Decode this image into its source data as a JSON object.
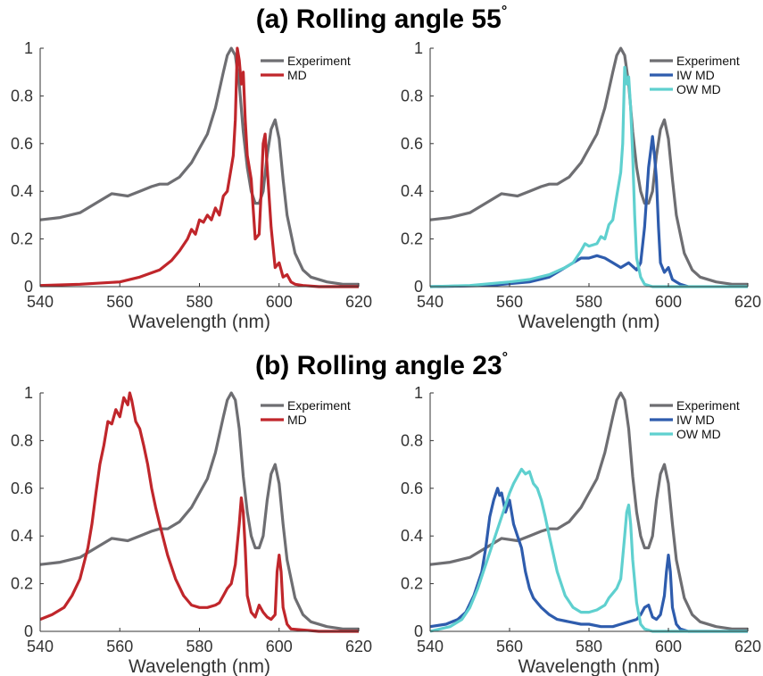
{
  "titles": {
    "a_text": "(a) Rolling angle 55",
    "b_text": "(b) Rolling angle 23",
    "deg": "°"
  },
  "colors": {
    "experiment": "#6e6e72",
    "md": "#c0262b",
    "iw_md": "#2e5cad",
    "ow_md": "#5fd0cf"
  },
  "chart_data": [
    {
      "type": "line",
      "panel": "a-left",
      "xlabel": "Wavelength (nm)",
      "ylabel": "",
      "xlim": [
        540,
        620
      ],
      "ylim": [
        0,
        1
      ],
      "xticks": [
        540,
        560,
        580,
        600,
        620
      ],
      "yticks": [
        0,
        0.2,
        0.4,
        0.6,
        0.8,
        1
      ],
      "grid": false,
      "legend": "top-right",
      "series": [
        {
          "name": "Experiment",
          "color_key": "experiment",
          "x": [
            540,
            545,
            550,
            555,
            558,
            562,
            565,
            568,
            570,
            572,
            575,
            578,
            580,
            582,
            584,
            586,
            587,
            588,
            589,
            590,
            591,
            592,
            593,
            594,
            595,
            596,
            597,
            598,
            599,
            600,
            601,
            602,
            604,
            606,
            608,
            612,
            616,
            620
          ],
          "y": [
            0.28,
            0.29,
            0.31,
            0.36,
            0.39,
            0.38,
            0.4,
            0.42,
            0.43,
            0.43,
            0.46,
            0.52,
            0.58,
            0.64,
            0.75,
            0.9,
            0.97,
            1.0,
            0.97,
            0.85,
            0.65,
            0.5,
            0.4,
            0.35,
            0.35,
            0.4,
            0.55,
            0.66,
            0.7,
            0.62,
            0.45,
            0.3,
            0.14,
            0.07,
            0.04,
            0.02,
            0.01,
            0.01
          ]
        },
        {
          "name": "MD",
          "color_key": "md",
          "x": [
            540,
            550,
            560,
            565,
            570,
            573,
            575,
            577,
            578,
            579,
            580,
            581,
            582,
            583,
            584,
            585,
            586,
            587,
            588,
            588.5,
            589,
            589.5,
            590,
            590.5,
            591,
            591.5,
            592,
            593,
            594,
            595,
            595.5,
            596,
            596.5,
            597,
            598,
            599,
            600,
            601,
            602,
            603,
            604,
            606,
            610,
            620
          ],
          "y": [
            0.005,
            0.01,
            0.02,
            0.04,
            0.07,
            0.11,
            0.15,
            0.2,
            0.24,
            0.22,
            0.28,
            0.27,
            0.3,
            0.28,
            0.33,
            0.3,
            0.38,
            0.4,
            0.5,
            0.55,
            0.7,
            1.0,
            0.95,
            0.85,
            0.9,
            0.7,
            0.55,
            0.45,
            0.2,
            0.22,
            0.4,
            0.6,
            0.64,
            0.5,
            0.25,
            0.08,
            0.1,
            0.04,
            0.05,
            0.02,
            0.01,
            0.005,
            0.0,
            0.0
          ]
        }
      ]
    },
    {
      "type": "line",
      "panel": "a-right",
      "xlabel": "Wavelength (nm)",
      "ylabel": "",
      "xlim": [
        540,
        620
      ],
      "ylim": [
        0,
        1
      ],
      "xticks": [
        540,
        560,
        580,
        600,
        620
      ],
      "yticks": [
        0,
        0.2,
        0.4,
        0.6,
        0.8,
        1
      ],
      "grid": false,
      "legend": "top-right",
      "series": [
        {
          "name": "Experiment",
          "color_key": "experiment",
          "x": [
            540,
            545,
            550,
            555,
            558,
            562,
            565,
            568,
            570,
            572,
            575,
            578,
            580,
            582,
            584,
            586,
            587,
            588,
            589,
            590,
            591,
            592,
            593,
            594,
            595,
            596,
            597,
            598,
            599,
            600,
            601,
            602,
            604,
            606,
            608,
            612,
            616,
            620
          ],
          "y": [
            0.28,
            0.29,
            0.31,
            0.36,
            0.39,
            0.38,
            0.4,
            0.42,
            0.43,
            0.43,
            0.46,
            0.52,
            0.58,
            0.64,
            0.75,
            0.9,
            0.97,
            1.0,
            0.97,
            0.85,
            0.65,
            0.5,
            0.4,
            0.35,
            0.35,
            0.4,
            0.55,
            0.66,
            0.7,
            0.62,
            0.45,
            0.3,
            0.14,
            0.07,
            0.04,
            0.02,
            0.01,
            0.01
          ]
        },
        {
          "name": "IW MD",
          "color_key": "iw_md",
          "x": [
            540,
            555,
            565,
            570,
            573,
            576,
            578,
            580,
            582,
            584,
            586,
            588,
            590,
            592,
            593,
            594,
            595,
            596,
            596.5,
            597,
            597.5,
            598,
            599,
            600,
            601,
            602,
            603,
            604,
            605
          ],
          "y": [
            0.0,
            0.005,
            0.02,
            0.04,
            0.07,
            0.1,
            0.12,
            0.12,
            0.13,
            0.12,
            0.1,
            0.08,
            0.1,
            0.07,
            0.1,
            0.25,
            0.5,
            0.63,
            0.55,
            0.45,
            0.25,
            0.1,
            0.06,
            0.08,
            0.03,
            0.02,
            0.01,
            0.005,
            0.0
          ]
        },
        {
          "name": "OW MD",
          "color_key": "ow_md",
          "x": [
            540,
            550,
            560,
            565,
            570,
            574,
            576,
            578,
            579,
            580,
            582,
            583,
            584,
            585,
            586,
            587,
            588,
            588.5,
            589,
            589.5,
            590,
            590.5,
            591,
            591.5,
            592,
            593,
            594,
            596,
            600,
            620
          ],
          "y": [
            0.0,
            0.005,
            0.02,
            0.03,
            0.05,
            0.08,
            0.1,
            0.15,
            0.18,
            0.17,
            0.18,
            0.21,
            0.2,
            0.26,
            0.28,
            0.38,
            0.48,
            0.6,
            0.92,
            0.85,
            0.88,
            0.75,
            0.55,
            0.3,
            0.12,
            0.04,
            0.01,
            0.0,
            0.0,
            0.0
          ]
        }
      ]
    },
    {
      "type": "line",
      "panel": "b-left",
      "xlabel": "Wavelength (nm)",
      "ylabel": "",
      "xlim": [
        540,
        620
      ],
      "ylim": [
        0,
        1
      ],
      "xticks": [
        540,
        560,
        580,
        600,
        620
      ],
      "yticks": [
        0,
        0.2,
        0.4,
        0.6,
        0.8,
        1
      ],
      "grid": false,
      "legend": "top-right",
      "series": [
        {
          "name": "Experiment",
          "color_key": "experiment",
          "x": [
            540,
            545,
            550,
            555,
            558,
            562,
            565,
            568,
            570,
            572,
            575,
            578,
            580,
            582,
            584,
            586,
            587,
            588,
            589,
            590,
            591,
            592,
            593,
            594,
            595,
            596,
            597,
            598,
            599,
            600,
            601,
            602,
            604,
            606,
            608,
            612,
            616,
            620
          ],
          "y": [
            0.28,
            0.29,
            0.31,
            0.36,
            0.39,
            0.38,
            0.4,
            0.42,
            0.43,
            0.43,
            0.46,
            0.52,
            0.58,
            0.64,
            0.75,
            0.9,
            0.97,
            1.0,
            0.97,
            0.85,
            0.65,
            0.5,
            0.4,
            0.35,
            0.35,
            0.4,
            0.55,
            0.66,
            0.7,
            0.62,
            0.45,
            0.3,
            0.14,
            0.07,
            0.04,
            0.02,
            0.01,
            0.01
          ]
        },
        {
          "name": "MD",
          "color_key": "md",
          "x": [
            540,
            543,
            546,
            548,
            550,
            552,
            553,
            554,
            555,
            556,
            557,
            558,
            559,
            560,
            561,
            562,
            562.5,
            563,
            564,
            565,
            566,
            567,
            568,
            569,
            570,
            572,
            574,
            576,
            578,
            580,
            582,
            584,
            585,
            586,
            587,
            588,
            589,
            590,
            590.5,
            591,
            591.5,
            592,
            593,
            594,
            595,
            596,
            597,
            598,
            599,
            599.5,
            600,
            600.5,
            601,
            602,
            603,
            610,
            620
          ],
          "y": [
            0.05,
            0.07,
            0.1,
            0.15,
            0.22,
            0.35,
            0.45,
            0.58,
            0.7,
            0.78,
            0.88,
            0.87,
            0.93,
            0.9,
            0.98,
            0.95,
            1.0,
            0.97,
            0.88,
            0.85,
            0.78,
            0.7,
            0.6,
            0.52,
            0.45,
            0.32,
            0.22,
            0.15,
            0.11,
            0.1,
            0.1,
            0.11,
            0.12,
            0.15,
            0.18,
            0.2,
            0.28,
            0.45,
            0.56,
            0.5,
            0.35,
            0.15,
            0.08,
            0.06,
            0.11,
            0.08,
            0.06,
            0.05,
            0.07,
            0.25,
            0.32,
            0.25,
            0.1,
            0.03,
            0.01,
            0.0,
            0.0
          ]
        }
      ]
    },
    {
      "type": "line",
      "panel": "b-right",
      "xlabel": "Wavelength (nm)",
      "ylabel": "",
      "xlim": [
        540,
        620
      ],
      "ylim": [
        0,
        1
      ],
      "xticks": [
        540,
        560,
        580,
        600,
        620
      ],
      "yticks": [
        0,
        0.2,
        0.4,
        0.6,
        0.8,
        1
      ],
      "grid": false,
      "legend": "top-right",
      "series": [
        {
          "name": "Experiment",
          "color_key": "experiment",
          "x": [
            540,
            545,
            550,
            555,
            558,
            562,
            565,
            568,
            570,
            572,
            575,
            578,
            580,
            582,
            584,
            586,
            587,
            588,
            589,
            590,
            591,
            592,
            593,
            594,
            595,
            596,
            597,
            598,
            599,
            600,
            601,
            602,
            604,
            606,
            608,
            612,
            616,
            620
          ],
          "y": [
            0.28,
            0.29,
            0.31,
            0.36,
            0.39,
            0.38,
            0.4,
            0.42,
            0.43,
            0.43,
            0.46,
            0.52,
            0.58,
            0.64,
            0.75,
            0.9,
            0.97,
            1.0,
            0.97,
            0.85,
            0.65,
            0.5,
            0.4,
            0.35,
            0.35,
            0.4,
            0.55,
            0.66,
            0.7,
            0.62,
            0.45,
            0.3,
            0.14,
            0.07,
            0.04,
            0.02,
            0.01,
            0.01
          ]
        },
        {
          "name": "IW MD",
          "color_key": "iw_md",
          "x": [
            540,
            544,
            547,
            549,
            551,
            553,
            554,
            555,
            556,
            557,
            557.5,
            558,
            559,
            560,
            561,
            562,
            563,
            564,
            565,
            566,
            567,
            568,
            570,
            572,
            575,
            578,
            580,
            583,
            586,
            588,
            590,
            592,
            593,
            594,
            595,
            596,
            597,
            598,
            599,
            599.5,
            600,
            600.5,
            601,
            602,
            603,
            605,
            620
          ],
          "y": [
            0.02,
            0.03,
            0.05,
            0.08,
            0.15,
            0.25,
            0.35,
            0.48,
            0.55,
            0.6,
            0.57,
            0.58,
            0.5,
            0.55,
            0.45,
            0.4,
            0.35,
            0.25,
            0.18,
            0.14,
            0.12,
            0.1,
            0.07,
            0.05,
            0.04,
            0.03,
            0.03,
            0.02,
            0.02,
            0.03,
            0.04,
            0.05,
            0.07,
            0.1,
            0.11,
            0.06,
            0.05,
            0.07,
            0.15,
            0.25,
            0.32,
            0.25,
            0.1,
            0.03,
            0.01,
            0.0,
            0.0
          ]
        },
        {
          "name": "OW MD",
          "color_key": "ow_md",
          "x": [
            540,
            545,
            548,
            550,
            552,
            554,
            556,
            558,
            560,
            561,
            562,
            563,
            564,
            565,
            566,
            567,
            568,
            569,
            570,
            572,
            574,
            576,
            578,
            580,
            582,
            584,
            585,
            586,
            587,
            588,
            589,
            589.5,
            590,
            590.5,
            591,
            592,
            593,
            594,
            596,
            620
          ],
          "y": [
            0.0,
            0.02,
            0.05,
            0.1,
            0.18,
            0.28,
            0.38,
            0.48,
            0.58,
            0.62,
            0.65,
            0.68,
            0.66,
            0.67,
            0.62,
            0.6,
            0.55,
            0.48,
            0.4,
            0.25,
            0.15,
            0.1,
            0.08,
            0.08,
            0.09,
            0.11,
            0.14,
            0.16,
            0.18,
            0.22,
            0.4,
            0.5,
            0.53,
            0.45,
            0.3,
            0.12,
            0.03,
            0.01,
            0.0,
            0.0
          ]
        }
      ]
    }
  ]
}
